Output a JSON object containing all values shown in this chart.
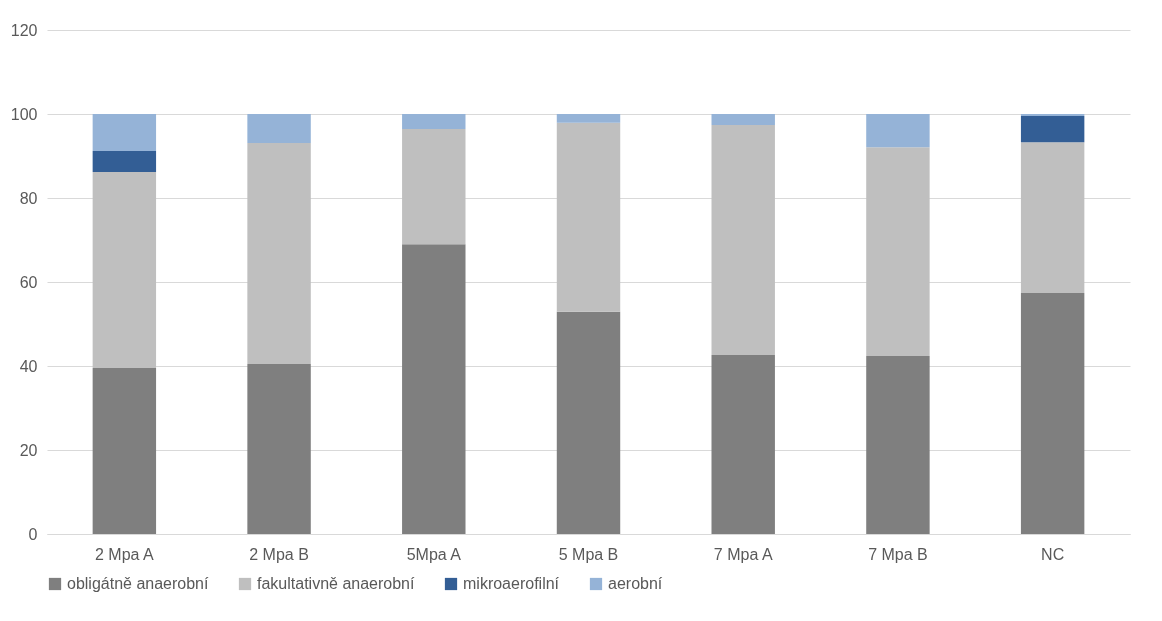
{
  "chart_data": {
    "type": "bar",
    "stacked": true,
    "categories": [
      "2 Mpa A",
      "2 Mpa B",
      "5Mpa A",
      "5 Mpa B",
      "7 Mpa A",
      "7 Mpa B",
      "NC"
    ],
    "series": [
      {
        "name": "obligátně anaerobní",
        "color": "#7f7f7f",
        "values": [
          39.5,
          40.5,
          69.0,
          52.9,
          42.6,
          42.4,
          57.4
        ]
      },
      {
        "name": "fakultativně anaerobní",
        "color": "#bfbfbf",
        "values": [
          46.7,
          52.6,
          27.4,
          45.0,
          54.8,
          49.7,
          35.9
        ]
      },
      {
        "name": "mikroaerofilní",
        "color": "#335e95",
        "values": [
          5.0,
          0,
          0,
          0,
          0,
          0,
          6.2
        ]
      },
      {
        "name": "aerobní",
        "color": "#95b3d7",
        "values": [
          8.8,
          6.9,
          3.6,
          2.1,
          2.6,
          7.9,
          0.5
        ]
      }
    ],
    "ylim": [
      0,
      120
    ],
    "yticks": [
      0,
      20,
      40,
      60,
      80,
      100,
      120
    ],
    "grid": "y",
    "legend": "bottom"
  }
}
